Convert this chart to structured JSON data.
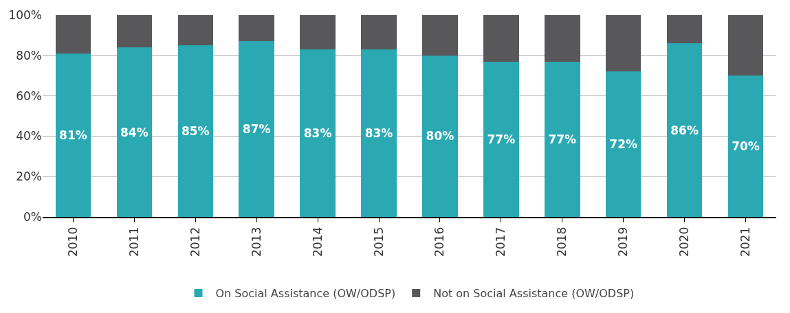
{
  "chart_data": {
    "type": "bar",
    "stacked": true,
    "categories": [
      "2010",
      "2011",
      "2012",
      "2013",
      "2014",
      "2015",
      "2016",
      "2017",
      "2018",
      "2019",
      "2020",
      "2021"
    ],
    "series": [
      {
        "name": "On Social Assistance (OW/ODSP)",
        "color": "#2aa9b3",
        "values": [
          81,
          84,
          85,
          87,
          83,
          83,
          80,
          77,
          77,
          72,
          86,
          70
        ],
        "value_labels": [
          "81%",
          "84%",
          "85%",
          "87%",
          "83%",
          "83%",
          "80%",
          "77%",
          "77%",
          "72%",
          "86%",
          "70%"
        ]
      },
      {
        "name": "Not on Social Assistance (OW/ODSP)",
        "color": "#58585b",
        "values": [
          19,
          16,
          15,
          13,
          17,
          17,
          20,
          23,
          23,
          28,
          14,
          30
        ]
      }
    ],
    "ylim": [
      0,
      100
    ],
    "yticks": [
      {
        "value": 0,
        "label": "0%"
      },
      {
        "value": 20,
        "label": "20%"
      },
      {
        "value": 40,
        "label": "40%"
      },
      {
        "value": 60,
        "label": "60%"
      },
      {
        "value": 80,
        "label": "80%"
      },
      {
        "value": 100,
        "label": "100%"
      }
    ],
    "grid": "y",
    "legend": "bottom"
  }
}
